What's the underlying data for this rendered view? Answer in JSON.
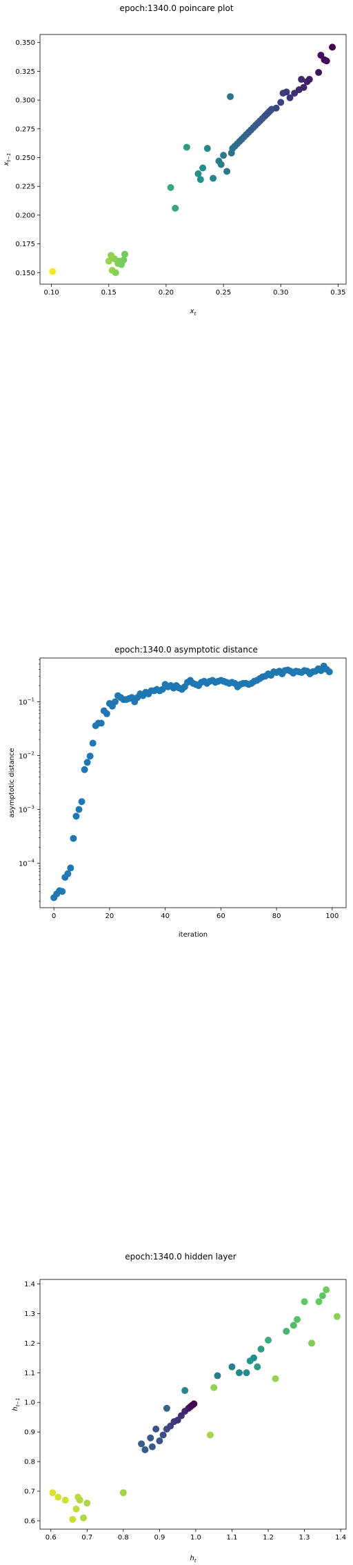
{
  "charts": [
    {
      "type": "scatter",
      "title": "epoch:1340.0 poincare plot",
      "xlabel": "x_t",
      "ylabel": "x_{t-1}",
      "xlim": [
        0.09,
        0.357
      ],
      "ylim": [
        0.14,
        0.357
      ],
      "xticks": [
        "0.10",
        "0.15",
        "0.20",
        "0.25",
        "0.30",
        "0.35"
      ],
      "yticks": [
        "0.150",
        "0.175",
        "0.200",
        "0.225",
        "0.250",
        "0.275",
        "0.300",
        "0.325",
        "0.350"
      ],
      "colormap": [
        "#440154",
        "#3b528b",
        "#21908d",
        "#5dc863",
        "#fde725"
      ],
      "grid": false
    },
    {
      "type": "scatter",
      "title": "epoch:1340.0 asymptotic distance",
      "xlabel": "iteration",
      "ylabel": "asymptotic distance",
      "xlim": [
        -5,
        105
      ],
      "ylim": [
        1.5e-05,
        0.65
      ],
      "yscale": "log",
      "xticks": [
        "0",
        "20",
        "40",
        "60",
        "80",
        "100"
      ],
      "yticks": [
        "10^-4",
        "10^-3",
        "10^-2",
        "10^-1"
      ],
      "color": "#1f77b4",
      "grid": false
    },
    {
      "type": "scatter",
      "title": "epoch:1340.0 hidden layer",
      "xlabel": "h_t",
      "ylabel": "h_{t-1}",
      "xlim": [
        0.57,
        1.415
      ],
      "ylim": [
        0.572,
        1.415
      ],
      "xticks": [
        "0.6",
        "0.7",
        "0.8",
        "0.9",
        "1.0",
        "1.1",
        "1.2",
        "1.3",
        "1.4"
      ],
      "yticks": [
        "0.6",
        "0.7",
        "0.8",
        "0.9",
        "1.0",
        "1.1",
        "1.2",
        "1.3",
        "1.4"
      ],
      "colormap": [
        "#440154",
        "#3b528b",
        "#21908d",
        "#5dc863",
        "#fde725"
      ],
      "grid": false
    }
  ],
  "chart_data": [
    {
      "type": "scatter",
      "title": "epoch:1340.0 poincare plot",
      "x": [
        0.101,
        0.15,
        0.152,
        0.153,
        0.155,
        0.156,
        0.158,
        0.159,
        0.161,
        0.163,
        0.164,
        0.204,
        0.208,
        0.218,
        0.228,
        0.23,
        0.232,
        0.236,
        0.241,
        0.246,
        0.248,
        0.25,
        0.253,
        0.256,
        0.257,
        0.258,
        0.26,
        0.262,
        0.264,
        0.266,
        0.268,
        0.27,
        0.272,
        0.274,
        0.276,
        0.278,
        0.28,
        0.282,
        0.284,
        0.286,
        0.287,
        0.288,
        0.289,
        0.29,
        0.291,
        0.292,
        0.296,
        0.3,
        0.302,
        0.305,
        0.308,
        0.312,
        0.316,
        0.318,
        0.32,
        0.323,
        0.325,
        0.333,
        0.335,
        0.338,
        0.34,
        0.345
      ],
      "y": [
        0.151,
        0.16,
        0.165,
        0.152,
        0.162,
        0.15,
        0.158,
        0.16,
        0.157,
        0.161,
        0.166,
        0.224,
        0.206,
        0.259,
        0.236,
        0.231,
        0.241,
        0.258,
        0.232,
        0.247,
        0.244,
        0.252,
        0.238,
        0.303,
        0.254,
        0.258,
        0.26,
        0.262,
        0.264,
        0.266,
        0.268,
        0.27,
        0.272,
        0.274,
        0.276,
        0.278,
        0.28,
        0.282,
        0.284,
        0.286,
        0.287,
        0.288,
        0.289,
        0.29,
        0.291,
        0.292,
        0.293,
        0.298,
        0.306,
        0.307,
        0.302,
        0.306,
        0.309,
        0.318,
        0.311,
        0.316,
        0.318,
        0.324,
        0.339,
        0.335,
        0.334,
        0.346
      ]
    },
    {
      "type": "scatter",
      "title": "epoch:1340.0 asymptotic distance",
      "x": [
        0,
        1,
        2,
        3,
        4,
        5,
        6,
        7,
        8,
        9,
        10,
        11,
        12,
        13,
        14,
        15,
        16,
        17,
        18,
        19,
        20,
        21,
        22,
        23,
        24,
        25,
        26,
        27,
        28,
        29,
        30,
        31,
        32,
        33,
        34,
        35,
        36,
        37,
        38,
        39,
        40,
        41,
        42,
        43,
        44,
        45,
        46,
        47,
        48,
        49,
        50,
        51,
        52,
        53,
        54,
        55,
        56,
        57,
        58,
        59,
        60,
        61,
        62,
        63,
        64,
        65,
        66,
        67,
        68,
        69,
        70,
        71,
        72,
        73,
        74,
        75,
        76,
        77,
        78,
        79,
        80,
        81,
        82,
        83,
        84,
        85,
        86,
        87,
        88,
        89,
        90,
        91,
        92,
        93,
        94,
        95,
        96,
        97,
        98,
        99
      ],
      "y": [
        2.3e-05,
        2.7e-05,
        3.1e-05,
        3e-05,
        5.5e-05,
        6.4e-05,
        8.2e-05,
        0.00029,
        0.00075,
        0.001,
        0.0014,
        0.0055,
        0.0075,
        0.0098,
        0.017,
        0.036,
        0.04,
        0.04,
        0.068,
        0.06,
        0.093,
        0.083,
        0.1,
        0.13,
        0.12,
        0.11,
        0.11,
        0.115,
        0.12,
        0.1,
        0.12,
        0.14,
        0.13,
        0.15,
        0.14,
        0.16,
        0.16,
        0.17,
        0.16,
        0.17,
        0.21,
        0.19,
        0.2,
        0.18,
        0.2,
        0.18,
        0.17,
        0.19,
        0.23,
        0.25,
        0.22,
        0.21,
        0.2,
        0.23,
        0.24,
        0.22,
        0.24,
        0.25,
        0.23,
        0.24,
        0.25,
        0.24,
        0.23,
        0.22,
        0.23,
        0.22,
        0.19,
        0.21,
        0.22,
        0.22,
        0.21,
        0.22,
        0.24,
        0.25,
        0.27,
        0.29,
        0.3,
        0.33,
        0.31,
        0.36,
        0.35,
        0.37,
        0.33,
        0.38,
        0.39,
        0.37,
        0.34,
        0.37,
        0.36,
        0.35,
        0.38,
        0.37,
        0.33,
        0.36,
        0.37,
        0.41,
        0.38,
        0.46,
        0.4,
        0.36
      ]
    },
    {
      "type": "scatter",
      "title": "epoch:1340.0 hidden layer",
      "x": [
        0.605,
        0.62,
        0.64,
        0.66,
        0.67,
        0.675,
        0.68,
        0.69,
        0.7,
        0.8,
        0.85,
        0.86,
        0.875,
        0.88,
        0.89,
        0.9,
        0.91,
        0.92,
        0.93,
        0.94,
        0.95,
        0.96,
        0.97,
        0.98,
        0.985,
        0.99,
        0.995,
        0.97,
        0.92,
        1.04,
        1.05,
        1.06,
        1.1,
        1.12,
        1.14,
        1.15,
        1.16,
        1.17,
        1.18,
        1.2,
        1.22,
        1.25,
        1.27,
        1.28,
        1.3,
        1.32,
        1.34,
        1.35,
        1.36,
        1.39
      ],
      "y": [
        0.695,
        0.68,
        0.67,
        0.605,
        0.64,
        0.68,
        0.67,
        0.61,
        0.66,
        0.695,
        0.86,
        0.84,
        0.88,
        0.85,
        0.91,
        0.87,
        0.89,
        0.91,
        0.92,
        0.935,
        0.94,
        0.955,
        0.97,
        0.98,
        0.985,
        0.99,
        0.995,
        1.04,
        0.98,
        0.89,
        1.05,
        1.09,
        1.12,
        1.1,
        1.1,
        1.14,
        1.15,
        1.12,
        1.18,
        1.21,
        1.08,
        1.24,
        1.26,
        1.28,
        1.34,
        1.2,
        1.34,
        1.36,
        1.38,
        1.29
      ],
      "c": [
        0.95,
        0.94,
        0.93,
        0.92,
        0.91,
        0.9,
        0.89,
        0.88,
        0.87,
        0.85,
        0.3,
        0.29,
        0.28,
        0.27,
        0.26,
        0.25,
        0.24,
        0.22,
        0.2,
        0.18,
        0.16,
        0.14,
        0.12,
        0.08,
        0.05,
        0.02,
        0.0,
        0.45,
        0.32,
        0.86,
        0.83,
        0.42,
        0.44,
        0.46,
        0.48,
        0.52,
        0.5,
        0.54,
        0.56,
        0.62,
        0.84,
        0.66,
        0.7,
        0.72,
        0.75,
        0.8,
        0.76,
        0.74,
        0.78,
        0.82
      ]
    }
  ]
}
